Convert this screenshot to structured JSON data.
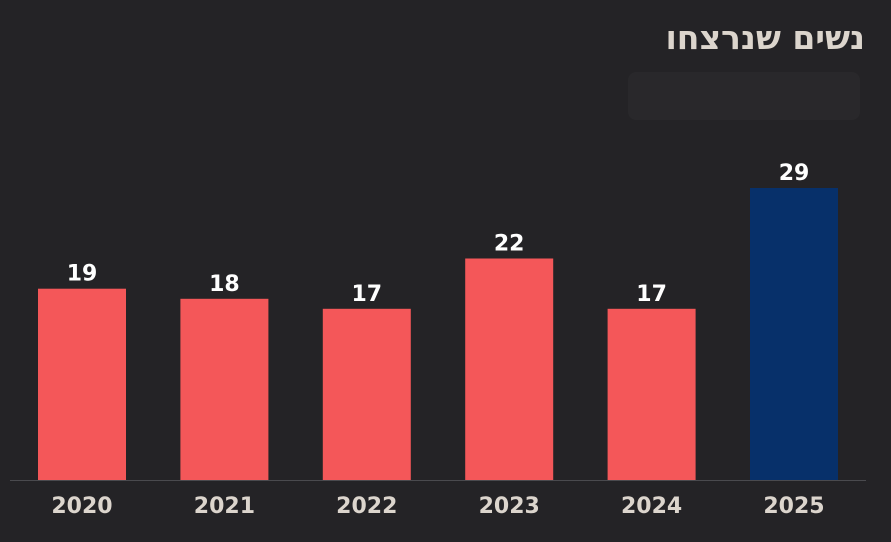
{
  "chart_data": {
    "type": "bar",
    "title": "נשים שנרצחו",
    "categories": [
      "2020",
      "2021",
      "2022",
      "2023",
      "2024",
      "2025"
    ],
    "values": [
      19,
      18,
      17,
      22,
      17,
      29
    ],
    "bar_colors": [
      "#f45759",
      "#f45759",
      "#f45759",
      "#f45759",
      "#f45759",
      "#07306a"
    ],
    "value_label_color": "#ffffff",
    "tick_label_color": "#dcd5cd",
    "axis_color": "#4a4a4e",
    "background": "#242326",
    "grid": false,
    "ylim": [
      0,
      29
    ]
  }
}
